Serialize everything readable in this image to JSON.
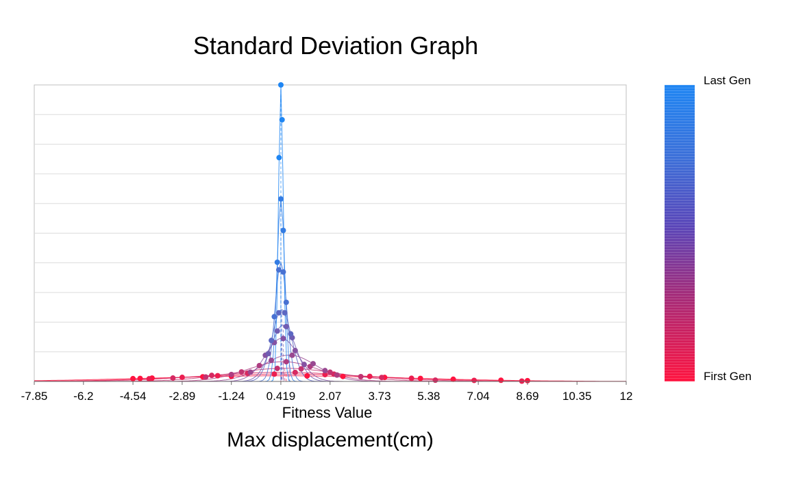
{
  "chart_data": {
    "type": "line",
    "title": "Standard Deviation Graph",
    "subtitle": "Max displacement(cm)",
    "xlabel": "Fitness Value",
    "ylabel": "",
    "xlim": [
      -7.85,
      12
    ],
    "x_ticks": [
      "-7.85",
      "-6.2",
      "-4.54",
      "-2.89",
      "-1.24",
      "0.419",
      "2.07",
      "3.73",
      "5.38",
      "7.04",
      "8.69",
      "10.35",
      "12"
    ],
    "grid": true,
    "colorbar": {
      "top_label": "Last Gen",
      "bottom_label": "First Gen",
      "top_color": "#1f86f3",
      "bottom_color": "#ff1440"
    },
    "series": [
      {
        "mean": 0.419,
        "sd": 4.2,
        "points": [
          -4.54,
          -4.3,
          -3.9,
          -2.2,
          -1.24,
          1.3,
          2.5,
          3.9,
          5.1,
          6.2,
          7.8,
          8.69
        ]
      },
      {
        "mean": 0.6,
        "sd": 3.2,
        "points": [
          -4.0,
          -2.89,
          -1.7,
          0.2,
          1.9,
          3.4,
          4.8,
          6.9,
          8.5
        ]
      },
      {
        "mean": 0.45,
        "sd": 2.6,
        "points": [
          -3.2,
          -1.9,
          -0.7,
          0.9,
          2.2,
          3.8,
          5.6
        ]
      },
      {
        "mean": 0.55,
        "sd": 1.8,
        "points": [
          -2.1,
          -0.9,
          0.3,
          1.1,
          2.07,
          3.1
        ]
      },
      {
        "mean": 0.5,
        "sd": 1.2,
        "points": [
          -1.24,
          -0.3,
          0.6,
          1.4,
          2.3
        ]
      },
      {
        "mean": 0.7,
        "sd": 0.9,
        "points": [
          -0.6,
          0.1,
          0.8,
          1.5,
          1.9
        ]
      },
      {
        "mean": 0.45,
        "sd": 0.55,
        "points": [
          -0.1,
          0.2,
          0.5,
          0.9,
          1.2
        ]
      },
      {
        "mean": 0.5,
        "sd": 0.42,
        "points": [
          0.0,
          0.3,
          0.6,
          0.8
        ]
      },
      {
        "mean": 0.45,
        "sd": 0.33,
        "points": [
          0.1,
          0.35,
          0.55,
          0.75
        ]
      },
      {
        "mean": 0.42,
        "sd": 0.2,
        "points": [
          0.2,
          0.35,
          0.5,
          0.6
        ]
      },
      {
        "mean": 0.42,
        "sd": 0.13,
        "points": [
          0.3,
          0.42,
          0.5
        ]
      },
      {
        "mean": 0.42,
        "sd": 0.08,
        "points": [
          0.36,
          0.42,
          0.46
        ]
      }
    ]
  }
}
